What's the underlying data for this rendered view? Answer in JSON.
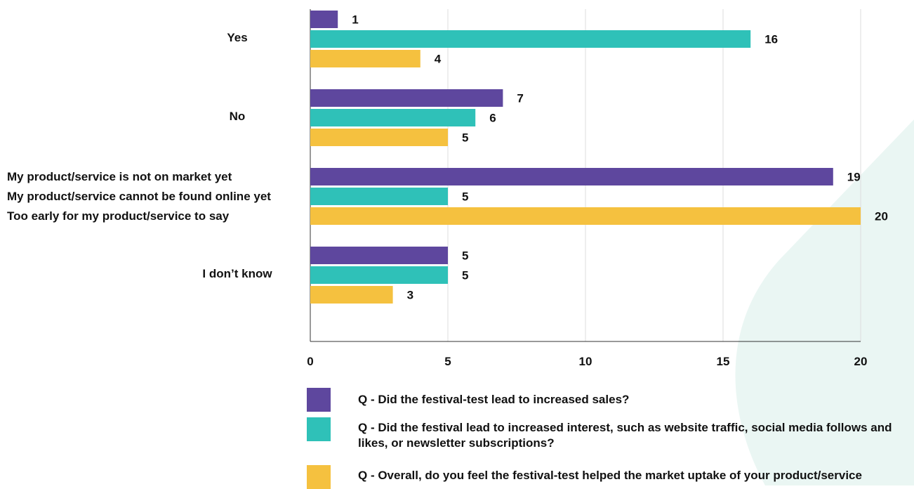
{
  "chart_data": {
    "type": "bar",
    "orientation": "horizontal",
    "category_groups": [
      {
        "labels": [
          "Yes"
        ]
      },
      {
        "labels": [
          "No"
        ]
      },
      {
        "labels": [
          "My product/service is not on market yet",
          "My product/service cannot be found online yet",
          "Too early for my product/service to say"
        ]
      },
      {
        "labels": [
          "I don’t know"
        ]
      }
    ],
    "series": [
      {
        "name": "Q - Did the festival-test lead to increased sales?",
        "color": "#5e479e",
        "values": [
          1,
          7,
          19,
          5
        ]
      },
      {
        "name": "Q - Did the festival lead to increased interest, such as website traffic, social media follows and likes, or newsletter subscriptions?",
        "color": "#2fc1b8",
        "values": [
          16,
          6,
          5,
          5
        ]
      },
      {
        "name": "Q - Overall, do you feel the festival-test helped the market uptake of your product/service",
        "color": "#f5c13f",
        "values": [
          4,
          5,
          20,
          3
        ]
      }
    ],
    "data_labels": [
      [
        "1",
        "7",
        "19",
        "5"
      ],
      [
        "16",
        "6",
        "5",
        "5"
      ],
      [
        "4",
        "5",
        "20",
        "3"
      ]
    ],
    "xlim": [
      0,
      20
    ],
    "xticks": [
      "0",
      "5",
      "10",
      "15",
      "20"
    ],
    "xlabel": "",
    "ylabel": "",
    "grid": true,
    "legend_position": "bottom"
  },
  "legend": {
    "items": [
      {
        "label": "Q - Did the festival-test lead to increased sales?",
        "color": "#5e479e"
      },
      {
        "label": "Q - Did the festival lead to increased interest, such as website traffic, social media follows and likes, or newsletter subscriptions?",
        "color": "#2fc1b8"
      },
      {
        "label": "Q - Overall, do you feel the festival-test helped the market uptake of your product/service",
        "color": "#f5c13f"
      }
    ]
  },
  "background_accent": "#eaf6f3"
}
